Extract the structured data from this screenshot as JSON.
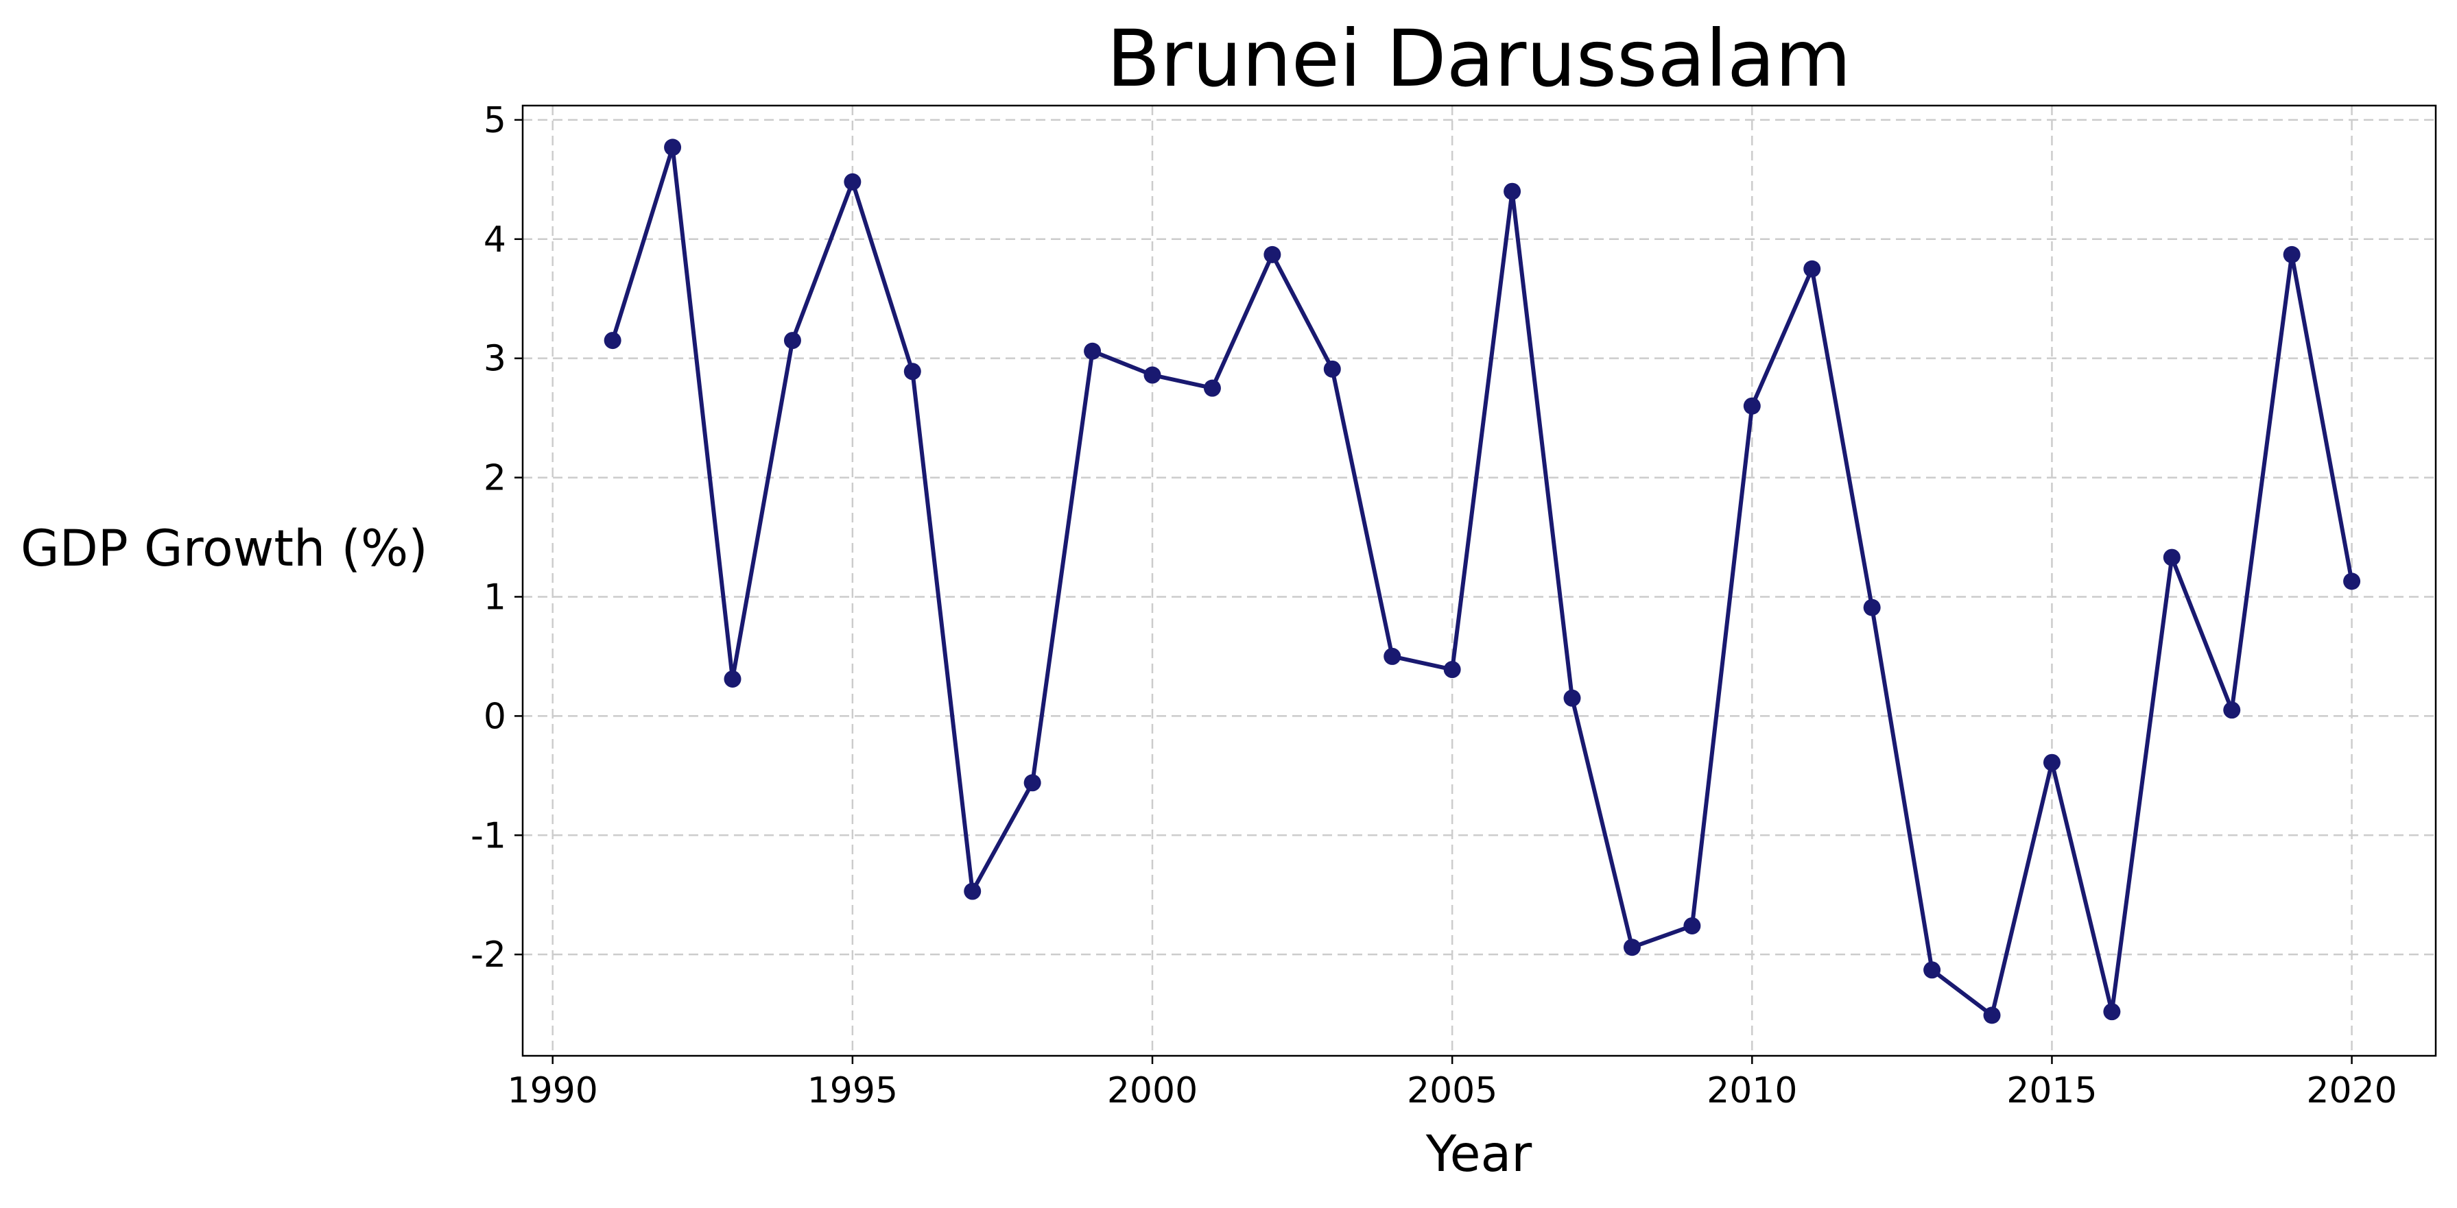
{
  "chart_data": {
    "type": "line",
    "title": "Brunei Darussalam",
    "xlabel": "Year",
    "ylabel": "GDP Growth (%)",
    "xlim": [
      1989.5,
      2021.4
    ],
    "ylim": [
      -2.85,
      5.12
    ],
    "xticks": [
      1990,
      1995,
      2000,
      2005,
      2010,
      2015,
      2020
    ],
    "yticks": [
      -2,
      -1,
      0,
      1,
      2,
      3,
      4,
      5
    ],
    "grid": true,
    "color": "#191970",
    "series": [
      {
        "x": [
          1991,
          1992,
          1993,
          1994,
          1995,
          1996,
          1997,
          1998,
          1999,
          2000,
          2001,
          2002,
          2003,
          2004,
          2005,
          2006,
          2007,
          2008,
          2009,
          2010,
          2011,
          2012,
          2013,
          2014,
          2015,
          2016,
          2017,
          2018,
          2019,
          2020
        ],
        "values": [
          3.15,
          4.77,
          0.31,
          3.15,
          4.48,
          2.89,
          -1.47,
          -0.56,
          3.06,
          2.86,
          2.75,
          3.87,
          2.91,
          0.5,
          0.39,
          4.4,
          0.15,
          -1.94,
          -1.76,
          2.6,
          3.75,
          0.91,
          -2.13,
          -2.51,
          -0.39,
          -2.48,
          1.33,
          0.05,
          3.87,
          1.13
        ]
      }
    ]
  }
}
